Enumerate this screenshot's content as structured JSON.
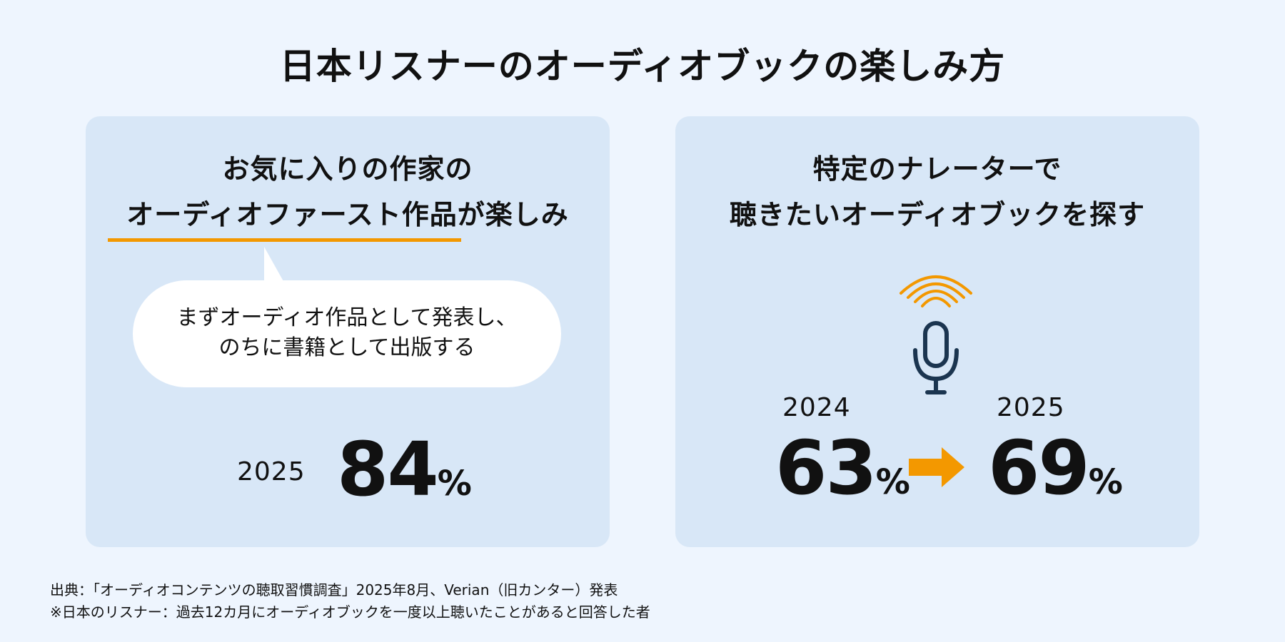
{
  "title": "日本リスナーのオーディオブックの楽しみ方",
  "left_panel": {
    "heading_line1": "お気に入りの作家の",
    "heading_line2": "オーディオファースト作品が楽しみ",
    "bubble_line1": "まずオーディオ作品として発表し、",
    "bubble_line2": "のちに書籍として出版する",
    "year": "2025",
    "value": "84",
    "unit": "%"
  },
  "right_panel": {
    "heading_line1": "特定のナレーターで",
    "heading_line2": "聴きたいオーディオブックを探す",
    "icon": "microphone-icon",
    "year_before": "2024",
    "value_before": "63",
    "year_after": "2025",
    "value_after": "69",
    "unit": "%"
  },
  "footer": {
    "source": "出典：「オーディオコンテンツの聴取習慣調査」2025年8月、Verian（旧カンター）発表",
    "note": "※日本のリスナー：過去12カ月にオーディオブックを一度以上聴いたことがあると回答した者"
  },
  "colors": {
    "background": "#eef5fe",
    "panel": "#d8e7f7",
    "accent": "#f39800",
    "icon": "#1b3550",
    "text": "#111111"
  }
}
